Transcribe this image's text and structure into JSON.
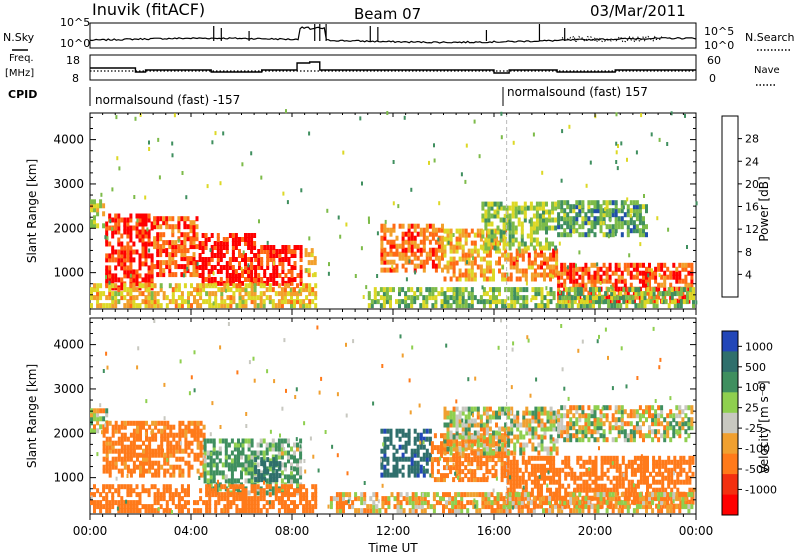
{
  "header": {
    "station": "Inuvik (fitACF)",
    "beam": "Beam 07",
    "date": "03/Mar/2011"
  },
  "left_labels": {
    "nsky": "N.Sky",
    "freq": "Freq.",
    "freq_unit": "[MHz]",
    "cpid": "CPID"
  },
  "right_labels": {
    "nsearch": "N.Search",
    "nave": "Nave"
  },
  "nsky_ticks": [
    "10^5",
    "10^0"
  ],
  "nsearch_ticks": [
    "10^5",
    "10^0"
  ],
  "freq_ticks": [
    "18",
    "8"
  ],
  "nave_ticks": [
    "60",
    "0"
  ],
  "cpid_segments": [
    {
      "label": "normalsound (fast) -157",
      "start": "00:00",
      "end": "16:30"
    },
    {
      "label": "normalsound (fast) 157",
      "start": "16:30",
      "end": "00:00"
    }
  ],
  "power_colorbar": {
    "label": "Power [dB]",
    "ticks": [
      "4",
      "8",
      "12",
      "16",
      "20",
      "24",
      "28"
    ],
    "colors": [
      "#0000ff",
      "#1f4fa8",
      "#3f8f5f",
      "#7dbb49",
      "#ddd826",
      "#f2a02b",
      "#ff6a14",
      "#ff0000"
    ]
  },
  "velocity_colorbar": {
    "label": "Velocity [m s⁻¹]",
    "ticks": [
      "1000",
      "500",
      "100",
      "25",
      "-25",
      "-100",
      "-500",
      "-1000"
    ],
    "colors": [
      "#2246b8",
      "#2f6f6c",
      "#3f8f5f",
      "#8fcf4f",
      "#c8c8c0",
      "#f0a030",
      "#ff7a1a",
      "#f33010",
      "#ff0000"
    ]
  },
  "chart_data": [
    {
      "type": "heatmap",
      "name": "power",
      "ylabel": "Slant Range [km]",
      "yticks": [
        "1000",
        "2000",
        "3000",
        "4000"
      ],
      "ylim": [
        180,
        4600
      ],
      "xlim": [
        "00:00",
        "24:00"
      ],
      "zlim": [
        0,
        32
      ],
      "regions": [
        {
          "t": [
            0.0,
            0.6
          ],
          "r": [
            2000,
            2600
          ],
          "z": 18
        },
        {
          "t": [
            0.6,
            2.5
          ],
          "r": [
            600,
            2300
          ],
          "z": 29
        },
        {
          "t": [
            2.5,
            4.3
          ],
          "r": [
            900,
            2200
          ],
          "z": 26
        },
        {
          "t": [
            4.3,
            6.5
          ],
          "r": [
            700,
            1800
          ],
          "z": 30
        },
        {
          "t": [
            6.5,
            8.3
          ],
          "r": [
            700,
            1600
          ],
          "z": 29
        },
        {
          "t": [
            8.5,
            8.9
          ],
          "r": [
            900,
            1500
          ],
          "z": 22
        },
        {
          "t": [
            0.0,
            9.0
          ],
          "r": [
            200,
            700
          ],
          "z": 20
        },
        {
          "t": [
            11.5,
            14.0
          ],
          "r": [
            1000,
            2000
          ],
          "z": 25
        },
        {
          "t": [
            14.0,
            16.5
          ],
          "r": [
            800,
            1900
          ],
          "z": 22
        },
        {
          "t": [
            16.5,
            18.5
          ],
          "r": [
            800,
            1500
          ],
          "z": 24
        },
        {
          "t": [
            18.5,
            23.9
          ],
          "r": [
            300,
            1200
          ],
          "z": 27
        },
        {
          "t": [
            15.5,
            18.5
          ],
          "r": [
            1500,
            2500
          ],
          "z": 15
        },
        {
          "t": [
            18.5,
            22.0
          ],
          "r": [
            1800,
            2600
          ],
          "z": 12
        },
        {
          "t": [
            11.0,
            23.9
          ],
          "r": [
            200,
            600
          ],
          "z": 14
        }
      ]
    },
    {
      "type": "heatmap",
      "name": "velocity",
      "ylabel": "Slant Range [km]",
      "yticks": [
        "1000",
        "2000",
        "3000",
        "4000"
      ],
      "ylim": [
        180,
        4600
      ],
      "xlim": [
        "00:00",
        "24:00"
      ],
      "xlabel": "Time UT",
      "xticks": [
        "00:00",
        "04:00",
        "08:00",
        "12:00",
        "16:00",
        "20:00",
        "00:00"
      ],
      "regions": [
        {
          "t": [
            0.0,
            0.7
          ],
          "r": [
            2000,
            2500
          ],
          "v": 0
        },
        {
          "t": [
            0.5,
            4.5
          ],
          "r": [
            1000,
            2200
          ],
          "v": -200
        },
        {
          "t": [
            4.5,
            6.0
          ],
          "r": [
            600,
            1800
          ],
          "v": 150
        },
        {
          "t": [
            6.0,
            8.3
          ],
          "r": [
            600,
            1800
          ],
          "v": 120
        },
        {
          "t": [
            6.5,
            7.5
          ],
          "r": [
            900,
            1400
          ],
          "v": 700
        },
        {
          "t": [
            0.0,
            9.0
          ],
          "r": [
            200,
            800
          ],
          "v": -300
        },
        {
          "t": [
            11.5,
            13.5
          ],
          "r": [
            1000,
            2000
          ],
          "v": 900
        },
        {
          "t": [
            13.5,
            16.5
          ],
          "r": [
            900,
            1900
          ],
          "v": -200
        },
        {
          "t": [
            14.0,
            18.5
          ],
          "r": [
            1500,
            2500
          ],
          "v": 0
        },
        {
          "t": [
            18.5,
            23.9
          ],
          "r": [
            1800,
            2600
          ],
          "v": 0
        },
        {
          "t": [
            16.5,
            23.9
          ],
          "r": [
            300,
            1400
          ],
          "v": -300
        },
        {
          "t": [
            9.5,
            23.9
          ],
          "r": [
            200,
            600
          ],
          "v": -50
        }
      ]
    }
  ]
}
